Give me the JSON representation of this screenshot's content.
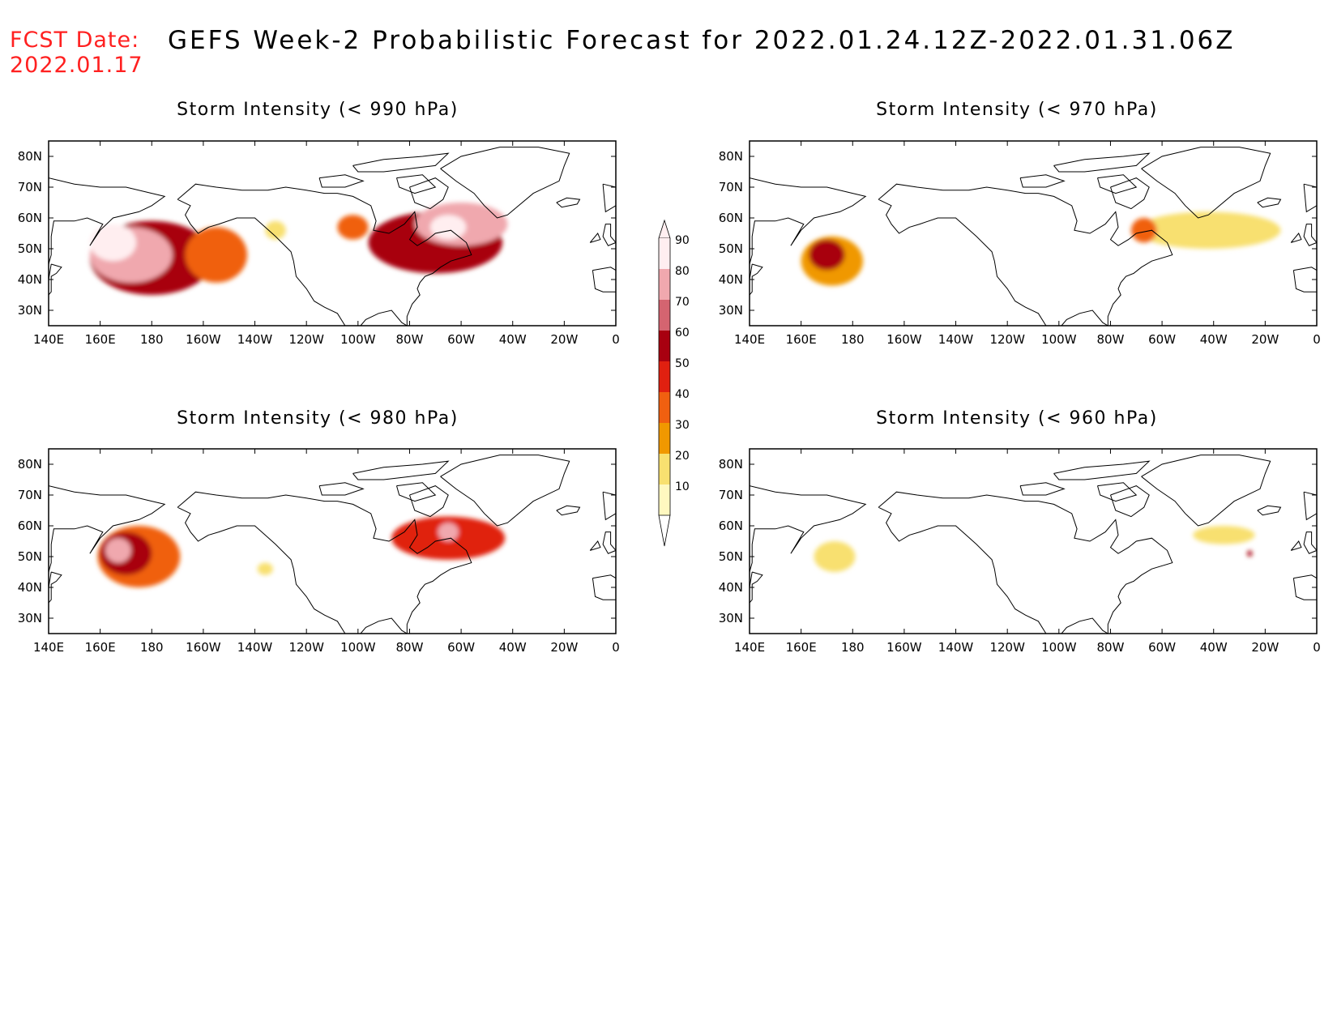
{
  "header": {
    "fcst_label": "FCST Date:",
    "fcst_date": "2022.01.17",
    "title": "GEFS Week-2 Probabilistic Forecast for 2022.01.24.12Z-2022.01.31.06Z"
  },
  "axes": {
    "lon_labels": [
      "140E",
      "160E",
      "180",
      "160W",
      "140W",
      "120W",
      "100W",
      "80W",
      "60W",
      "40W",
      "20W",
      "0"
    ],
    "lat_labels": [
      "80N",
      "70N",
      "60N",
      "50N",
      "40N",
      "30N"
    ]
  },
  "panels": [
    {
      "id": "p990",
      "title": "Storm Intensity (< 990 hPa)",
      "blobs": [
        {
          "lon": 180,
          "lat": 47,
          "rx": 24,
          "ry": 12,
          "p": 60
        },
        {
          "lon": 172,
          "lat": 48,
          "rx": 16,
          "ry": 9,
          "p": 80
        },
        {
          "lon": 165,
          "lat": 52,
          "rx": 9,
          "ry": 6,
          "p": 90
        },
        {
          "lon": 205,
          "lat": 48,
          "rx": 12,
          "ry": 9,
          "p": 40
        },
        {
          "lon": 228,
          "lat": 56,
          "rx": 4,
          "ry": 3,
          "p": 20
        },
        {
          "lon": 290,
          "lat": 52,
          "rx": 26,
          "ry": 10,
          "p": 60
        },
        {
          "lon": 300,
          "lat": 58,
          "rx": 18,
          "ry": 7,
          "p": 80
        },
        {
          "lon": 295,
          "lat": 57,
          "rx": 7,
          "ry": 4,
          "p": 90
        },
        {
          "lon": 258,
          "lat": 57,
          "rx": 6,
          "ry": 4,
          "p": 40
        }
      ]
    },
    {
      "id": "p970",
      "title": "Storm Intensity (< 970 hPa)",
      "blobs": [
        {
          "lon": 172,
          "lat": 46,
          "rx": 12,
          "ry": 8,
          "p": 30
        },
        {
          "lon": 170,
          "lat": 48,
          "rx": 7,
          "ry": 5,
          "p": 60
        },
        {
          "lon": 318,
          "lat": 56,
          "rx": 28,
          "ry": 6,
          "p": 20
        },
        {
          "lon": 293,
          "lat": 56,
          "rx": 5,
          "ry": 4,
          "p": 40
        }
      ]
    },
    {
      "id": "p980",
      "title": "Storm Intensity (< 980 hPa)",
      "blobs": [
        {
          "lon": 175,
          "lat": 50,
          "rx": 16,
          "ry": 10,
          "p": 40
        },
        {
          "lon": 170,
          "lat": 51,
          "rx": 10,
          "ry": 7,
          "p": 60
        },
        {
          "lon": 167,
          "lat": 52,
          "rx": 5,
          "ry": 4,
          "p": 80
        },
        {
          "lon": 295,
          "lat": 56,
          "rx": 22,
          "ry": 7,
          "p": 50
        },
        {
          "lon": 295,
          "lat": 58,
          "rx": 4,
          "ry": 3,
          "p": 80
        },
        {
          "lon": 224,
          "lat": 46,
          "rx": 3,
          "ry": 2,
          "p": 20
        }
      ]
    },
    {
      "id": "p960",
      "title": "Storm Intensity (< 960 hPa)",
      "blobs": [
        {
          "lon": 173,
          "lat": 50,
          "rx": 8,
          "ry": 5,
          "p": 20
        },
        {
          "lon": 324,
          "lat": 57,
          "rx": 12,
          "ry": 3,
          "p": 20
        },
        {
          "lon": 334,
          "lat": 51,
          "rx": 1,
          "ry": 1,
          "p": 60
        }
      ]
    }
  ],
  "colorbar": {
    "levels": [
      "90",
      "80",
      "70",
      "60",
      "50",
      "40",
      "30",
      "20",
      "10"
    ],
    "colors": [
      "#ffeef0",
      "#f0a8ae",
      "#d46470",
      "#a80010",
      "#e02010",
      "#f06010",
      "#f09800",
      "#f8e070",
      "#fff8c0"
    ]
  }
}
